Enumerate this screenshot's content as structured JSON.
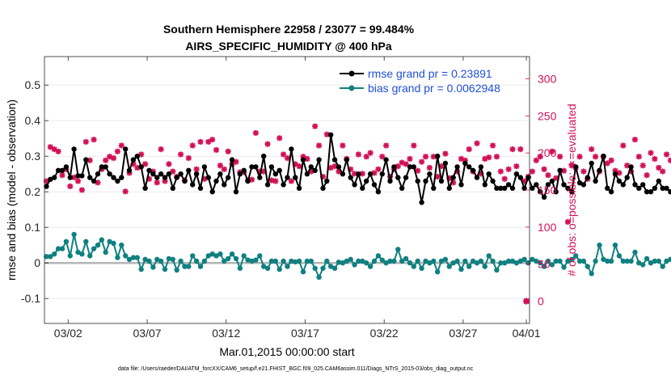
{
  "chart_data": {
    "type": "line",
    "title": "Southern Hemisphere 22958 / 23077 = 99.484%",
    "subtitle": "AIRS_SPECIFIC_HUMIDITY @ 400 hPa",
    "xlabel": "Mar.01,2015 00:00:00 start",
    "ylabel": "rmse and bias (model - observation)",
    "ylabel_right": "# of obs: o=possible; ∗=evaluated",
    "footer": "data file: /Users/raeder/DAI/ATM_forcXX/CAM6_setup/f.e21.FHIST_BGC.f09_025.CAM6assim.011/Diags_NTrS_2015-03/obs_diag_output.nc",
    "xlim": [
      0.5,
      31.2
    ],
    "ylim": [
      -0.17,
      0.58
    ],
    "ylim_right": [
      -30,
      330
    ],
    "x_ticks": [
      {
        "v": 2,
        "label": "03/02"
      },
      {
        "v": 7,
        "label": "03/07"
      },
      {
        "v": 12,
        "label": "03/12"
      },
      {
        "v": 17,
        "label": "03/17"
      },
      {
        "v": 22,
        "label": "03/22"
      },
      {
        "v": 27,
        "label": "03/27"
      },
      {
        "v": 31,
        "label": "04/01"
      }
    ],
    "y_ticks": [
      {
        "v": -0.1,
        "label": "-0.1"
      },
      {
        "v": 0,
        "label": "0"
      },
      {
        "v": 0.1,
        "label": "0.1"
      },
      {
        "v": 0.2,
        "label": "0.2"
      },
      {
        "v": 0.3,
        "label": "0.3"
      },
      {
        "v": 0.4,
        "label": "0.4"
      },
      {
        "v": 0.5,
        "label": "0.5"
      }
    ],
    "y_ticks_right": [
      {
        "v": 0,
        "label": "0"
      },
      {
        "v": 50,
        "label": "50"
      },
      {
        "v": 100,
        "label": "100"
      },
      {
        "v": 150,
        "label": "150"
      },
      {
        "v": 200,
        "label": "200"
      },
      {
        "v": 250,
        "label": "250"
      },
      {
        "v": 300,
        "label": "300"
      }
    ],
    "series": [
      {
        "name": "rmse grand pr = 0.23891",
        "color": "#000000",
        "axis": "left",
        "x0": 0.625,
        "dx": 0.25,
        "values": [
          0.215,
          0.235,
          0.24,
          0.26,
          0.26,
          0.27,
          0.24,
          0.32,
          0.245,
          0.245,
          0.29,
          0.24,
          0.23,
          0.25,
          0.27,
          0.27,
          0.25,
          0.24,
          0.23,
          0.24,
          0.32,
          0.26,
          0.29,
          0.3,
          0.27,
          0.21,
          0.26,
          0.25,
          0.24,
          0.25,
          0.24,
          0.25,
          0.21,
          0.24,
          0.25,
          0.23,
          0.26,
          0.22,
          0.25,
          0.21,
          0.27,
          0.24,
          0.2,
          0.23,
          0.25,
          0.22,
          0.24,
          0.29,
          0.2,
          0.25,
          0.26,
          0.23,
          0.27,
          0.27,
          0.24,
          0.3,
          0.22,
          0.27,
          0.25,
          0.26,
          0.22,
          0.24,
          0.32,
          0.24,
          0.21,
          0.29,
          0.25,
          0.27,
          0.26,
          0.29,
          0.21,
          0.23,
          0.36,
          0.29,
          0.27,
          0.25,
          0.29,
          0.24,
          0.22,
          0.25,
          0.21,
          0.23,
          0.25,
          0.22,
          0.2,
          0.25,
          0.29,
          0.23,
          0.27,
          0.24,
          0.21,
          0.24,
          0.27,
          0.27,
          0.23,
          0.17,
          0.23,
          0.25,
          0.21,
          0.3,
          0.23,
          0.28,
          0.21,
          0.24,
          0.27,
          0.22,
          0.28,
          0.27,
          0.26,
          0.24,
          0.27,
          0.22,
          0.25,
          0.23,
          0.21,
          0.21,
          0.21,
          0.22,
          0.21,
          0.25,
          0.24,
          0.21,
          0.24,
          0.21,
          0.22,
          0.2,
          0.185,
          0.22,
          0.23,
          0.2,
          0.26,
          0.22,
          0.21,
          0.2,
          0.27,
          0.225,
          0.22,
          0.24,
          0.28,
          0.23,
          0.26,
          0.3,
          0.21,
          0.2,
          0.25,
          0.23,
          0.22,
          0.24,
          0.27,
          0.22,
          0.21,
          0.22,
          0.2,
          0.2,
          0.21,
          0.23,
          0.21,
          0.21,
          0.2,
          0.22,
          0.21,
          0.22,
          0.23,
          0.24,
          0.2,
          0.23,
          0.21,
          0.2,
          0.21,
          0.19,
          0.2,
          0.19,
          0.21,
          0.31,
          0.26,
          0.27
        ]
      },
      {
        "name": "bias grand pr = 0.0062948",
        "color": "#108080",
        "axis": "left",
        "x0": 0.625,
        "dx": 0.25,
        "values": [
          0.018,
          0.018,
          0.025,
          0.04,
          0.04,
          0.06,
          0.02,
          0.08,
          0.03,
          0.025,
          0.06,
          0.02,
          0.04,
          0.05,
          0.065,
          0.03,
          0.06,
          0.055,
          0.015,
          0.05,
          0.02,
          0.01,
          0.015,
          0.015,
          -0.018,
          0.01,
          0.005,
          -0.012,
          0.01,
          0.005,
          -0.018,
          0.012,
          0.01,
          -0.02,
          0.005,
          -0.01,
          -0.01,
          0.02,
          0.005,
          -0.01,
          0.005,
          0.02,
          0.025,
          0.02,
          0.025,
          0.005,
          0.012,
          0.025,
          0.012,
          -0.015,
          0.02,
          0.008,
          0.005,
          0.008,
          0.02,
          -0.01,
          -0.015,
          0.005,
          0.005,
          -0.018,
          0.005,
          -0.01,
          0.005,
          0.003,
          0.005,
          -0.025,
          0.005,
          0.005,
          -0.015,
          -0.04,
          -0.015,
          0.005,
          -0.01,
          -0.015,
          0.002,
          0.0,
          0.005,
          0.01,
          -0.005,
          0.005,
          0.005,
          0.0,
          -0.01,
          0.005,
          0.02,
          0.008,
          0.0,
          0.005,
          0.005,
          0.038,
          0.005,
          0.012,
          0.0,
          -0.01,
          0.005,
          -0.015,
          0.005,
          0.0,
          0.005,
          -0.025,
          0.005,
          0.01,
          -0.01,
          0.0,
          0.005,
          -0.018,
          0.005,
          -0.01,
          0.005,
          0.0,
          0.005,
          -0.01,
          0.02,
          0.005,
          -0.02,
          0.0,
          0.0,
          0.005,
          0.005,
          0.0,
          0.005,
          0.01,
          0.0,
          0.01,
          0.005,
          0.0,
          -0.01,
          0.005,
          -0.005,
          0.005,
          0.005,
          -0.012,
          0.005,
          0.01,
          0.02,
          0.005,
          0.005,
          -0.01,
          -0.03,
          0.005,
          0.05,
          0.01,
          0.005,
          0.005,
          0.05,
          0.02,
          0.005,
          0.005,
          0.005,
          0.03,
          0.0,
          -0.005,
          0.012,
          0.0,
          0.005,
          0.005,
          -0.01,
          0.005,
          0.01,
          0.015,
          0.01,
          0.0,
          0.005,
          -0.015,
          0.005,
          0.005,
          0.015,
          0.01,
          -0.008,
          0.005,
          0.0,
          -0.015,
          -0.015,
          0.005,
          0.015,
          0.015
        ]
      }
    ],
    "evaluated_counts": {
      "name": "# evaluated obs",
      "color": "#d21056",
      "axis": "right",
      "x0": 0.625,
      "dx": 0.25,
      "values": [
        162,
        208,
        205,
        202,
        170,
        178,
        155,
        167,
        162,
        150,
        215,
        190,
        218,
        160,
        178,
        190,
        195,
        193,
        202,
        210,
        148,
        173,
        185,
        180,
        198,
        185,
        165,
        175,
        160,
        205,
        162,
        185,
        175,
        168,
        198,
        163,
        193,
        210,
        178,
        215,
        165,
        215,
        218,
        204,
        183,
        178,
        202,
        185,
        188,
        174,
        174,
        163,
        164,
        227,
        175,
        175,
        212,
        163,
        162,
        220,
        198,
        193,
        162,
        185,
        182,
        195,
        192,
        175,
        236,
        210,
        168,
        225,
        180,
        182,
        175,
        210,
        192,
        178,
        172,
        198,
        172,
        195,
        200,
        173,
        178,
        195,
        210,
        168,
        178,
        182,
        187,
        185,
        192,
        210,
        176,
        188,
        195,
        180,
        195,
        168,
        182,
        199,
        166,
        160,
        175,
        192,
        190,
        205,
        175,
        213,
        172,
        192,
        194,
        210,
        195,
        175,
        165,
        178,
        205,
        182,
        205,
        162,
        168,
        175,
        190,
        195,
        178,
        170,
        202,
        166,
        195,
        176,
        107,
        183,
        180,
        195,
        175,
        165,
        205,
        195,
        175,
        195,
        186,
        190,
        176,
        173,
        210,
        183,
        175,
        218,
        195,
        183,
        170,
        200,
        192,
        180,
        175,
        198,
        190,
        200,
        172,
        166,
        160,
        175,
        180,
        175,
        195,
        162,
        185,
        188,
        192,
        195,
        168,
        195,
        170,
        182,
        160,
        178,
        180
      ]
    },
    "possible_point": {
      "x": 31.0,
      "value": 0
    }
  }
}
